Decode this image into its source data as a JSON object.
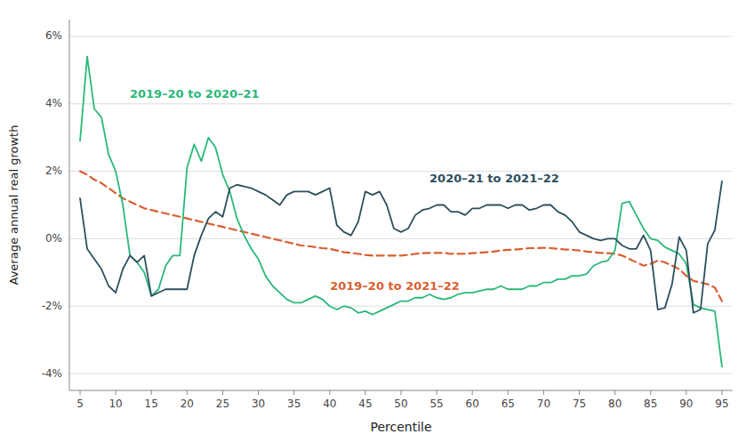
{
  "chart_data": {
    "type": "line",
    "xlabel": "Percentile",
    "ylabel": "Average annual real growth",
    "x": [
      5,
      6,
      7,
      8,
      9,
      10,
      11,
      12,
      13,
      14,
      15,
      16,
      17,
      18,
      19,
      20,
      21,
      22,
      23,
      24,
      25,
      26,
      27,
      28,
      29,
      30,
      31,
      32,
      33,
      34,
      35,
      36,
      37,
      38,
      39,
      40,
      41,
      42,
      43,
      44,
      45,
      46,
      47,
      48,
      49,
      50,
      51,
      52,
      53,
      54,
      55,
      56,
      57,
      58,
      59,
      60,
      61,
      62,
      63,
      64,
      65,
      66,
      67,
      68,
      69,
      70,
      71,
      72,
      73,
      74,
      75,
      76,
      77,
      78,
      79,
      80,
      81,
      82,
      83,
      84,
      85,
      86,
      87,
      88,
      89,
      90,
      91,
      92,
      93,
      94,
      95
    ],
    "series": [
      {
        "name": "2019–20 to 2020–21",
        "color": "#2ab87a",
        "line_style": "solid",
        "values": [
          2.9,
          5.4,
          3.85,
          3.6,
          2.5,
          2.0,
          1.0,
          -0.5,
          -0.7,
          -1.0,
          -1.7,
          -1.5,
          -0.8,
          -0.5,
          -0.5,
          2.1,
          2.8,
          2.3,
          3.0,
          2.7,
          1.9,
          1.4,
          0.6,
          0.1,
          -0.3,
          -0.6,
          -1.1,
          -1.4,
          -1.6,
          -1.8,
          -1.9,
          -1.9,
          -1.8,
          -1.7,
          -1.8,
          -2.0,
          -2.1,
          -2.0,
          -2.05,
          -2.2,
          -2.15,
          -2.25,
          -2.15,
          -2.05,
          -1.95,
          -1.85,
          -1.85,
          -1.75,
          -1.75,
          -1.65,
          -1.75,
          -1.8,
          -1.75,
          -1.65,
          -1.6,
          -1.6,
          -1.55,
          -1.5,
          -1.5,
          -1.4,
          -1.5,
          -1.5,
          -1.5,
          -1.4,
          -1.4,
          -1.3,
          -1.3,
          -1.2,
          -1.2,
          -1.1,
          -1.1,
          -1.05,
          -0.8,
          -0.7,
          -0.65,
          -0.35,
          1.05,
          1.1,
          0.7,
          0.3,
          0.0,
          -0.05,
          -0.25,
          -0.35,
          -0.45,
          -0.75,
          -1.95,
          -2.05,
          -2.1,
          -2.15,
          -3.8
        ]
      },
      {
        "name": "2020–21 to 2021–22",
        "color": "#2d4f5e",
        "line_style": "solid",
        "values": [
          1.2,
          -0.3,
          -0.6,
          -0.9,
          -1.4,
          -1.6,
          -0.9,
          -0.5,
          -0.7,
          -0.5,
          -1.7,
          -1.6,
          -1.5,
          -1.5,
          -1.5,
          -1.5,
          -0.5,
          0.1,
          0.6,
          0.8,
          0.65,
          1.5,
          1.6,
          1.55,
          1.5,
          1.4,
          1.3,
          1.15,
          1.0,
          1.3,
          1.4,
          1.4,
          1.4,
          1.3,
          1.4,
          1.5,
          0.4,
          0.2,
          0.1,
          0.5,
          1.4,
          1.3,
          1.4,
          1.0,
          0.3,
          0.2,
          0.3,
          0.7,
          0.85,
          0.9,
          1.0,
          1.0,
          0.8,
          0.8,
          0.7,
          0.9,
          0.9,
          1.0,
          1.0,
          1.0,
          0.9,
          1.0,
          1.0,
          0.85,
          0.9,
          1.0,
          1.0,
          0.8,
          0.7,
          0.5,
          0.2,
          0.1,
          0.0,
          -0.05,
          0.0,
          0.0,
          -0.2,
          -0.3,
          -0.3,
          0.1,
          -0.35,
          -2.1,
          -2.05,
          -1.35,
          0.05,
          -0.35,
          -2.2,
          -2.1,
          -0.15,
          0.25,
          1.7
        ]
      },
      {
        "name": "2019–20 to 2021–22",
        "color": "#d95f30",
        "line_style": "dashed",
        "values": [
          2.0,
          1.9,
          1.75,
          1.65,
          1.5,
          1.35,
          1.2,
          1.1,
          1.0,
          0.9,
          0.85,
          0.8,
          0.75,
          0.7,
          0.65,
          0.6,
          0.55,
          0.5,
          0.45,
          0.4,
          0.35,
          0.3,
          0.25,
          0.2,
          0.15,
          0.1,
          0.05,
          0.0,
          -0.05,
          -0.1,
          -0.15,
          -0.2,
          -0.22,
          -0.25,
          -0.28,
          -0.3,
          -0.35,
          -0.4,
          -0.42,
          -0.45,
          -0.48,
          -0.5,
          -0.5,
          -0.5,
          -0.5,
          -0.5,
          -0.48,
          -0.45,
          -0.43,
          -0.42,
          -0.42,
          -0.42,
          -0.45,
          -0.45,
          -0.45,
          -0.43,
          -0.42,
          -0.4,
          -0.38,
          -0.35,
          -0.33,
          -0.32,
          -0.3,
          -0.28,
          -0.28,
          -0.27,
          -0.28,
          -0.3,
          -0.32,
          -0.33,
          -0.35,
          -0.38,
          -0.4,
          -0.42,
          -0.43,
          -0.45,
          -0.5,
          -0.6,
          -0.7,
          -0.8,
          -0.75,
          -0.65,
          -0.7,
          -0.8,
          -0.9,
          -1.1,
          -1.25,
          -1.3,
          -1.35,
          -1.45,
          -1.85
        ]
      }
    ],
    "xlim": [
      3.5,
      96.5
    ],
    "ylim": [
      -4.5,
      6.5
    ],
    "xticks": [
      5,
      10,
      15,
      20,
      25,
      30,
      35,
      40,
      45,
      50,
      55,
      60,
      65,
      70,
      75,
      80,
      85,
      90,
      95
    ],
    "yticks": [
      {
        "value": -4,
        "label": "-4%"
      },
      {
        "value": -2,
        "label": "-2%"
      },
      {
        "value": 0,
        "label": "0%"
      },
      {
        "value": 2,
        "label": "2%"
      },
      {
        "value": 4,
        "label": "4%"
      },
      {
        "value": 6,
        "label": "6%"
      }
    ],
    "grid": true
  }
}
